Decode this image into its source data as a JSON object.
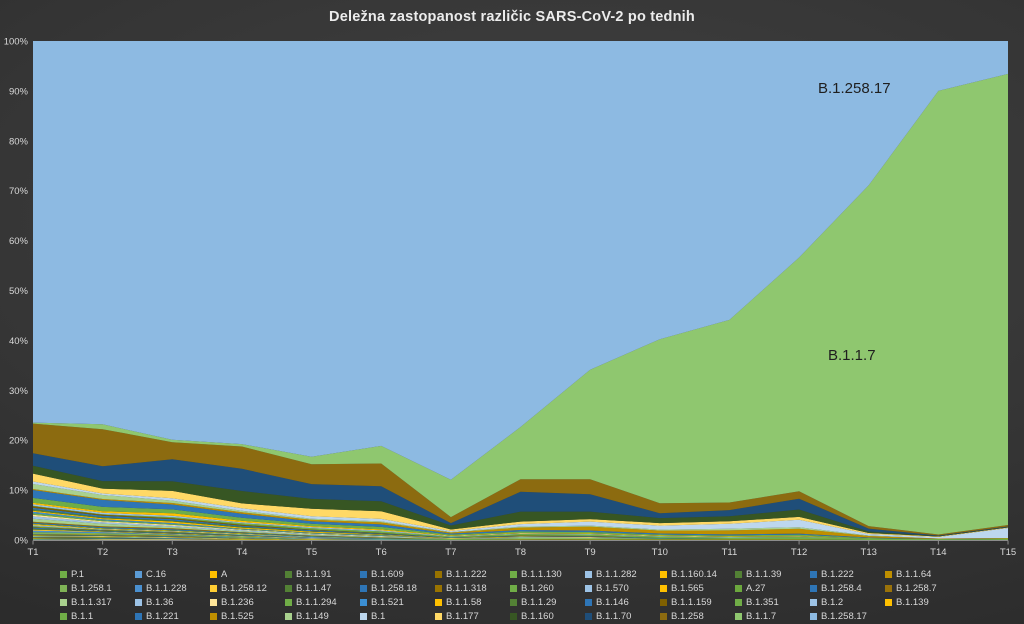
{
  "title": "Deležna zastopanost različic SARS-CoV-2 po tednih",
  "area_labels": {
    "top": "B.1.258.17",
    "bottom": "B.1.1.7"
  },
  "chart_data": {
    "type": "area",
    "stacking": "percent",
    "title": "Deležna zastopanost različic SARS-CoV-2 po tednih",
    "xlabel": "",
    "ylabel": "",
    "ylim": [
      0,
      100
    ],
    "y_ticks": [
      "0%",
      "10%",
      "20%",
      "30%",
      "40%",
      "50%",
      "60%",
      "70%",
      "80%",
      "90%",
      "100%"
    ],
    "x": [
      "T1",
      "T2",
      "T3",
      "T4",
      "T5",
      "T6",
      "T7",
      "T8",
      "T9",
      "T10",
      "T11",
      "T12",
      "T13",
      "T14",
      "T15"
    ],
    "grid": false,
    "legend_position": "bottom",
    "legend_columns": 12,
    "series": [
      {
        "name": "P.1",
        "color": "#70AD47",
        "values": [
          0.1,
          0,
          0,
          0,
          0,
          0,
          0,
          0,
          0.1,
          0.1,
          0.1,
          0.1,
          0.1,
          0.1,
          0.2
        ]
      },
      {
        "name": "C.16",
        "color": "#5B9BD5",
        "values": [
          0.1,
          0.1,
          0.1,
          0,
          0,
          0,
          0,
          0,
          0,
          0,
          0,
          0,
          0,
          0,
          0
        ]
      },
      {
        "name": "A",
        "color": "#FFC000",
        "values": [
          0.1,
          0.1,
          0.1,
          0.1,
          0,
          0,
          0,
          0,
          0,
          0,
          0,
          0,
          0,
          0,
          0
        ]
      },
      {
        "name": "B.1.1.91",
        "color": "#538135",
        "values": [
          0.1,
          0.1,
          0,
          0,
          0,
          0,
          0,
          0,
          0,
          0,
          0,
          0,
          0,
          0,
          0
        ]
      },
      {
        "name": "B.1.609",
        "color": "#2E75B6",
        "values": [
          0.1,
          0.1,
          0.1,
          0,
          0,
          0,
          0,
          0,
          0,
          0,
          0,
          0,
          0,
          0,
          0
        ]
      },
      {
        "name": "B.1.1.222",
        "color": "#997300",
        "values": [
          0.1,
          0.1,
          0,
          0,
          0,
          0,
          0,
          0,
          0,
          0,
          0,
          0,
          0,
          0,
          0
        ]
      },
      {
        "name": "B.1.1.130",
        "color": "#70AD47",
        "values": [
          0.1,
          0.1,
          0.1,
          0.1,
          0,
          0,
          0,
          0,
          0,
          0,
          0,
          0,
          0,
          0,
          0
        ]
      },
      {
        "name": "B.1.1.282",
        "color": "#9DC3E6",
        "values": [
          0.1,
          0.1,
          0.1,
          0,
          0,
          0,
          0,
          0,
          0,
          0,
          0,
          0,
          0,
          0,
          0
        ]
      },
      {
        "name": "B.1.160.14",
        "color": "#FFC000",
        "values": [
          0.1,
          0.1,
          0.1,
          0.1,
          0.1,
          0,
          0,
          0,
          0,
          0,
          0,
          0,
          0,
          0,
          0
        ]
      },
      {
        "name": "B.1.1.39",
        "color": "#538135",
        "values": [
          0.1,
          0.1,
          0.1,
          0,
          0,
          0,
          0,
          0,
          0,
          0,
          0,
          0,
          0,
          0,
          0
        ]
      },
      {
        "name": "B.1.222",
        "color": "#2E75B6",
        "values": [
          0.1,
          0.1,
          0.1,
          0.1,
          0,
          0,
          0,
          0,
          0,
          0,
          0,
          0,
          0,
          0,
          0
        ]
      },
      {
        "name": "B.1.1.64",
        "color": "#BF8F00",
        "values": [
          0.1,
          0.1,
          0.1,
          0,
          0,
          0,
          0,
          0,
          0,
          0,
          0,
          0,
          0,
          0,
          0
        ]
      },
      {
        "name": "B.1.258.1",
        "color": "#7FB356",
        "values": [
          0.4,
          0.3,
          0.2,
          0.2,
          0.1,
          0.1,
          0.1,
          0.1,
          0,
          0,
          0,
          0,
          0,
          0,
          0
        ]
      },
      {
        "name": "B.1.1.228",
        "color": "#4A90D0",
        "values": [
          0.3,
          0.2,
          0.1,
          0.1,
          0.1,
          0.1,
          0,
          0,
          0,
          0,
          0,
          0,
          0,
          0,
          0
        ]
      },
      {
        "name": "B.1.258.12",
        "color": "#FFCD33",
        "values": [
          0.2,
          0.1,
          0.1,
          0.1,
          0.1,
          0,
          0,
          0,
          0,
          0,
          0,
          0,
          0,
          0,
          0
        ]
      },
      {
        "name": "B.1.1.47",
        "color": "#538135",
        "values": [
          0.2,
          0.1,
          0.1,
          0.1,
          0,
          0,
          0,
          0,
          0,
          0,
          0,
          0,
          0,
          0,
          0
        ]
      },
      {
        "name": "B.1.258.18",
        "color": "#2E75B6",
        "values": [
          0.2,
          0.1,
          0.1,
          0.1,
          0.1,
          0.1,
          0,
          0,
          0,
          0,
          0,
          0,
          0,
          0,
          0
        ]
      },
      {
        "name": "B.1.1.318",
        "color": "#997300",
        "values": [
          0.1,
          0.1,
          0.1,
          0,
          0,
          0,
          0,
          0.1,
          0.1,
          0.1,
          0.1,
          0.1,
          0,
          0,
          0
        ]
      },
      {
        "name": "B.1.260",
        "color": "#70AD47",
        "values": [
          0.2,
          0.1,
          0.1,
          0.1,
          0,
          0,
          0,
          0,
          0,
          0,
          0,
          0,
          0,
          0,
          0
        ]
      },
      {
        "name": "B.1.570",
        "color": "#9DC3E6",
        "values": [
          0.2,
          0.1,
          0.1,
          0.1,
          0.1,
          0,
          0,
          0,
          0,
          0,
          0,
          0,
          0,
          0,
          0
        ]
      },
      {
        "name": "B.1.565",
        "color": "#FFC000",
        "values": [
          0.2,
          0.1,
          0.1,
          0.1,
          0,
          0,
          0,
          0,
          0,
          0,
          0,
          0,
          0,
          0,
          0
        ]
      },
      {
        "name": "A.27",
        "color": "#6CA83E",
        "values": [
          0.1,
          0.1,
          0.1,
          0.1,
          0.1,
          0.1,
          0.1,
          0.1,
          0.1,
          0.1,
          0,
          0,
          0,
          0,
          0
        ]
      },
      {
        "name": "B.1.258.4",
        "color": "#2E75B6",
        "values": [
          0.2,
          0.2,
          0.2,
          0.1,
          0.1,
          0,
          0,
          0,
          0,
          0,
          0,
          0,
          0,
          0,
          0
        ]
      },
      {
        "name": "B.1.258.7",
        "color": "#9A7209",
        "values": [
          0.2,
          0.2,
          0.2,
          0.1,
          0.1,
          0.1,
          0,
          0,
          0,
          0,
          0,
          0,
          0,
          0,
          0
        ]
      },
      {
        "name": "B.1.1.317",
        "color": "#A9D18E",
        "values": [
          0.6,
          0.5,
          0.3,
          0.2,
          0.2,
          0.1,
          0.1,
          0.1,
          0.1,
          0,
          0,
          0,
          0,
          0,
          0
        ]
      },
      {
        "name": "B.1.36",
        "color": "#9DC3E6",
        "values": [
          0.5,
          0.3,
          0.2,
          0.2,
          0.1,
          0.1,
          0,
          0.1,
          0.1,
          0,
          0,
          0,
          0,
          0,
          0
        ]
      },
      {
        "name": "B.1.236",
        "color": "#FFE699",
        "values": [
          0.3,
          0.2,
          0.2,
          0.1,
          0.1,
          0.1,
          0,
          0,
          0,
          0,
          0,
          0,
          0,
          0,
          0
        ]
      },
      {
        "name": "B.1.1.294",
        "color": "#70AD47",
        "values": [
          0.3,
          0.2,
          0.2,
          0.1,
          0.1,
          0.1,
          0,
          0.1,
          0,
          0,
          0,
          0,
          0,
          0,
          0
        ]
      },
      {
        "name": "B.1.521",
        "color": "#3B8FD4",
        "values": [
          0.3,
          0.2,
          0.2,
          0.1,
          0.1,
          0.1,
          0,
          0,
          0,
          0,
          0,
          0,
          0,
          0,
          0
        ]
      },
      {
        "name": "B.1.1.58",
        "color": "#FFC000",
        "values": [
          0.2,
          0.2,
          0.3,
          0.2,
          0.2,
          0.1,
          0.1,
          0.1,
          0.1,
          0,
          0,
          0,
          0,
          0,
          0
        ]
      },
      {
        "name": "B.1.1.29",
        "color": "#538135",
        "values": [
          0.3,
          0.2,
          0.2,
          0.2,
          0.1,
          0.1,
          0,
          0,
          0,
          0,
          0,
          0,
          0,
          0,
          0
        ]
      },
      {
        "name": "B.1.146",
        "color": "#2E75B6",
        "values": [
          0.3,
          0.3,
          0.3,
          0.2,
          0.2,
          0.1,
          0.1,
          0.1,
          0.1,
          0.1,
          0,
          0,
          0,
          0,
          0
        ]
      },
      {
        "name": "B.1.1.159",
        "color": "#7F6000",
        "values": [
          0.3,
          0.2,
          0.2,
          0.2,
          0.1,
          0.1,
          0,
          0.1,
          0.1,
          0,
          0,
          0,
          0,
          0,
          0
        ]
      },
      {
        "name": "B.1.351",
        "color": "#70AD47",
        "values": [
          0.1,
          0.1,
          0.2,
          0.3,
          0.3,
          0.3,
          0.2,
          0.3,
          0.3,
          0.3,
          0.3,
          0.4,
          0.2,
          0.1,
          0.1
        ]
      },
      {
        "name": "B.1.2",
        "color": "#9DC3E6",
        "values": [
          0.3,
          0.3,
          0.3,
          0.2,
          0.2,
          0.2,
          0.1,
          0.1,
          0.1,
          0.1,
          0.1,
          0.1,
          0,
          0,
          0
        ]
      },
      {
        "name": "B.1.139",
        "color": "#FFC000",
        "values": [
          0.3,
          0.3,
          0.5,
          0.3,
          0.2,
          0.2,
          0.1,
          0.1,
          0.1,
          0.1,
          0.1,
          0.1,
          0,
          0,
          0
        ]
      },
      {
        "name": "B.1.1",
        "color": "#70AD47",
        "values": [
          1.0,
          0.9,
          0.8,
          0.6,
          0.5,
          0.5,
          0.2,
          0.3,
          0.3,
          0.2,
          0.2,
          0.3,
          0.1,
          0,
          0
        ]
      },
      {
        "name": "B.1.221",
        "color": "#2E75B6",
        "values": [
          1.6,
          1.4,
          1.0,
          0.8,
          0.5,
          0.5,
          0.2,
          0.3,
          0.3,
          0.2,
          0.2,
          0.2,
          0.1,
          0,
          0
        ]
      },
      {
        "name": "B.1.525",
        "color": "#BF8F00",
        "values": [
          0.2,
          0.2,
          0.3,
          0.3,
          0.3,
          0.4,
          0.2,
          0.5,
          0.8,
          0.6,
          0.8,
          1.0,
          0.3,
          0.1,
          0.1
        ]
      },
      {
        "name": "B.1.149",
        "color": "#A9D18E",
        "values": [
          1.0,
          0.8,
          0.5,
          0.3,
          0.2,
          0.2,
          0.1,
          0.2,
          0.2,
          0.2,
          0.3,
          0.3,
          0.1,
          0,
          0
        ]
      },
      {
        "name": "B.1",
        "color": "#BDD7EE",
        "values": [
          0.5,
          0.3,
          0.5,
          0.5,
          0.5,
          0.5,
          0.2,
          0.5,
          0.8,
          0.8,
          1.0,
          1.5,
          0.3,
          0.3,
          2.0
        ]
      },
      {
        "name": "B.1.177",
        "color": "#FFD966",
        "values": [
          1.6,
          1.0,
          1.5,
          1.0,
          1.5,
          1.5,
          0.3,
          0.5,
          0.5,
          0.5,
          0.5,
          0.6,
          0.2,
          0.1,
          0.1
        ]
      },
      {
        "name": "B.1.160",
        "color": "#375623",
        "values": [
          1.6,
          1.5,
          2.0,
          2.5,
          2.0,
          2.0,
          0.8,
          2.0,
          1.5,
          1.0,
          1.0,
          1.5,
          0.3,
          0.1,
          0.1
        ]
      },
      {
        "name": "B.1.1.70",
        "color": "#1F4E79",
        "values": [
          2.5,
          3.0,
          4.5,
          4.5,
          3.0,
          3.0,
          0.5,
          4.0,
          3.5,
          1.0,
          1.2,
          2.2,
          0.6,
          0.1,
          0.1
        ]
      },
      {
        "name": "B.1.258",
        "color": "#8C6B10",
        "values": [
          6.0,
          7.5,
          3.5,
          4.5,
          4.0,
          4.5,
          1.2,
          2.5,
          3.0,
          2.0,
          1.5,
          1.5,
          0.5,
          0.2,
          0.3
        ]
      },
      {
        "name": "B.1.1.7",
        "color": "#8FC76F",
        "values": [
          0.2,
          1.0,
          0.5,
          0.5,
          1.5,
          3.5,
          7.5,
          10.5,
          22.0,
          33.0,
          36.0,
          47.5,
          68.5,
          89.0,
          90.5
        ]
      },
      {
        "name": "B.1.258.17",
        "color": "#8DBAE2",
        "values": [
          77.0,
          77.5,
          82.0,
          81.5,
          84.0,
          80.5,
          88.0,
          77.5,
          66.0,
          60.0,
          55.0,
          44.0,
          29.0,
          10.0,
          6.6
        ]
      }
    ]
  }
}
